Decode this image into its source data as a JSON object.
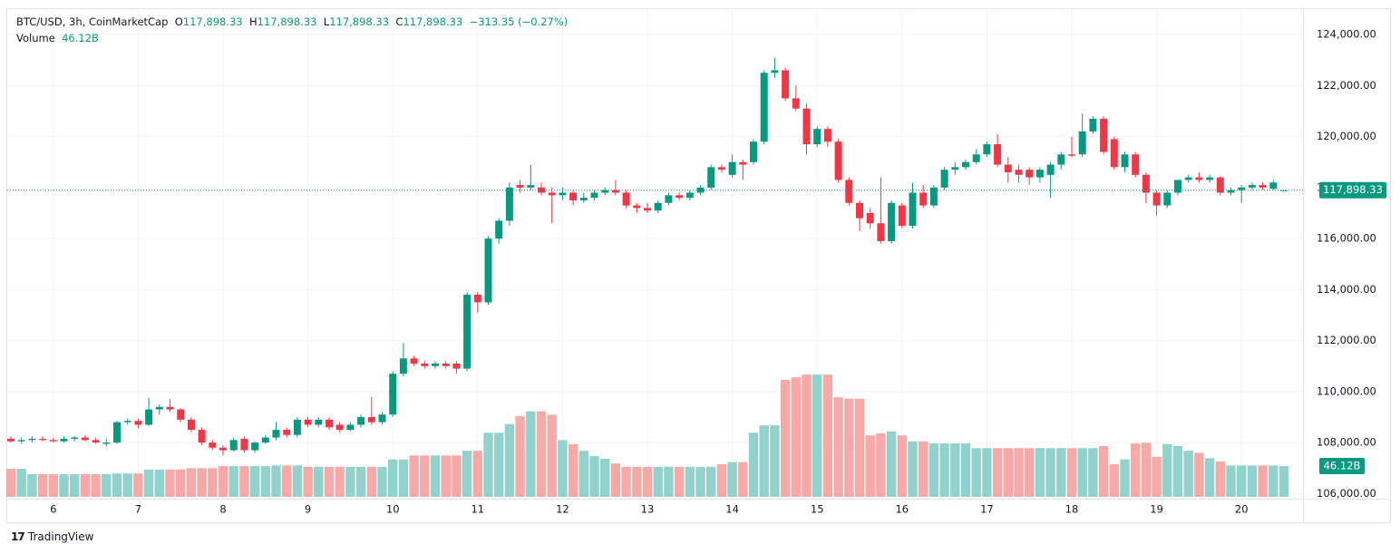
{
  "header": {
    "symbol": "BTC/USD, 3h, CoinMarketCap",
    "o_label": "O",
    "o": "117,898.33",
    "h_label": "H",
    "h": "117,898.33",
    "l_label": "L",
    "l": "117,898.33",
    "c_label": "C",
    "c": "117,898.33",
    "change": "−313.35 (−0.27%)",
    "volume_label": "Volume",
    "volume_value": "46.12B"
  },
  "footer": {
    "brand": "TradingView"
  },
  "chart_data": {
    "type": "candlestick",
    "up_color": "#089981",
    "down_color": "#f23645",
    "volume_up_color": "#92d2cc",
    "volume_down_color": "#f7a9a7",
    "ylim": [
      105800,
      125000
    ],
    "yticks": [
      {
        "value": 106000,
        "label": "106,000.00"
      },
      {
        "value": 108000,
        "label": "108,000.00"
      },
      {
        "value": 110000,
        "label": "110,000.00"
      },
      {
        "value": 112000,
        "label": "112,000.00"
      },
      {
        "value": 114000,
        "label": "114,000.00"
      },
      {
        "value": 116000,
        "label": "116,000.00"
      },
      {
        "value": 118000,
        "label": "118,000.00"
      },
      {
        "value": 120000,
        "label": "120,000.00"
      },
      {
        "value": 122000,
        "label": "122,000.00"
      },
      {
        "value": 124000,
        "label": "124,000.00"
      }
    ],
    "grid": true,
    "last_price": {
      "value": 117898.33,
      "label": "117,898.33"
    },
    "categories": [
      null,
      null,
      null,
      null,
      "6",
      null,
      null,
      null,
      null,
      null,
      null,
      null,
      "7",
      null,
      null,
      null,
      null,
      null,
      null,
      null,
      "8",
      null,
      null,
      null,
      null,
      null,
      null,
      null,
      "9",
      null,
      null,
      null,
      null,
      null,
      null,
      null,
      "10",
      null,
      null,
      null,
      null,
      null,
      null,
      null,
      "11",
      null,
      null,
      null,
      null,
      null,
      null,
      null,
      "12",
      null,
      null,
      null,
      null,
      null,
      null,
      null,
      "13",
      null,
      null,
      null,
      null,
      null,
      null,
      null,
      "14",
      null,
      null,
      null,
      null,
      null,
      null,
      null,
      "15",
      null,
      null,
      null,
      null,
      null,
      null,
      null,
      "16",
      null,
      null,
      null,
      null,
      null,
      null,
      null,
      "17",
      null,
      null,
      null,
      null,
      null,
      null,
      null,
      "18",
      null,
      null,
      null,
      null,
      null,
      null,
      null,
      "19",
      null,
      null,
      null,
      null,
      null,
      null,
      null,
      "20",
      null,
      null,
      null,
      null
    ],
    "ohlc": [
      [
        108150,
        108250,
        108000,
        108050
      ],
      [
        108050,
        108200,
        107950,
        108100
      ],
      [
        108100,
        108250,
        108000,
        108150
      ],
      [
        108150,
        108250,
        108050,
        108100
      ],
      [
        108100,
        108200,
        108000,
        108050
      ],
      [
        108050,
        108250,
        108000,
        108150
      ],
      [
        108150,
        108250,
        108050,
        108200
      ],
      [
        108200,
        108300,
        108050,
        108100
      ],
      [
        108100,
        108200,
        107950,
        108000
      ],
      [
        107950,
        108150,
        107850,
        108000
      ],
      [
        108000,
        108850,
        107950,
        108800
      ],
      [
        108800,
        108950,
        108700,
        108850
      ],
      [
        108850,
        108950,
        108550,
        108700
      ],
      [
        108700,
        109750,
        108650,
        109300
      ],
      [
        109300,
        109500,
        109100,
        109400
      ],
      [
        109400,
        109700,
        109200,
        109300
      ],
      [
        109300,
        109350,
        108800,
        108900
      ],
      [
        108900,
        109000,
        108400,
        108500
      ],
      [
        108500,
        108600,
        107900,
        108000
      ],
      [
        108000,
        108100,
        107700,
        107800
      ],
      [
        107800,
        107900,
        107500,
        107700
      ],
      [
        107700,
        108200,
        107650,
        108100
      ],
      [
        108150,
        108250,
        107600,
        107700
      ],
      [
        107700,
        108050,
        107600,
        108000
      ],
      [
        108000,
        108300,
        107950,
        108200
      ],
      [
        108200,
        108800,
        108100,
        108500
      ],
      [
        108500,
        108600,
        108200,
        108300
      ],
      [
        108300,
        109000,
        108200,
        108900
      ],
      [
        108900,
        109000,
        108600,
        108700
      ],
      [
        108700,
        109000,
        108600,
        108900
      ],
      [
        108900,
        109000,
        108500,
        108600
      ],
      [
        108700,
        108800,
        108400,
        108500
      ],
      [
        108500,
        108800,
        108450,
        108700
      ],
      [
        108700,
        109100,
        108600,
        109000
      ],
      [
        109000,
        109800,
        108700,
        108800
      ],
      [
        108800,
        109200,
        108700,
        109100
      ],
      [
        109100,
        110800,
        109000,
        110700
      ],
      [
        110700,
        111900,
        110600,
        111300
      ],
      [
        111300,
        111400,
        111000,
        111100
      ],
      [
        111100,
        111200,
        110900,
        111000
      ],
      [
        111000,
        111200,
        110900,
        111100
      ],
      [
        111100,
        111200,
        110900,
        111000
      ],
      [
        111100,
        111200,
        110700,
        110900
      ],
      [
        110900,
        113900,
        110800,
        113800
      ],
      [
        113800,
        113900,
        113100,
        113500
      ],
      [
        113500,
        116100,
        113400,
        116000
      ],
      [
        116000,
        116800,
        115800,
        116700
      ],
      [
        116700,
        118200,
        116500,
        118000
      ],
      [
        118100,
        118300,
        117800,
        118000
      ],
      [
        118000,
        118900,
        117900,
        118100
      ],
      [
        118000,
        118200,
        117700,
        117800
      ],
      [
        117800,
        118000,
        116600,
        117700
      ],
      [
        117700,
        118000,
        117500,
        117800
      ],
      [
        117800,
        117900,
        117300,
        117500
      ],
      [
        117500,
        117800,
        117400,
        117600
      ],
      [
        117600,
        117900,
        117500,
        117800
      ],
      [
        117800,
        118000,
        117700,
        117900
      ],
      [
        117900,
        118300,
        117700,
        117800
      ],
      [
        117800,
        117900,
        117200,
        117300
      ],
      [
        117300,
        117400,
        117000,
        117200
      ],
      [
        117200,
        117400,
        117000,
        117100
      ],
      [
        117100,
        117500,
        117000,
        117400
      ],
      [
        117400,
        117800,
        117300,
        117700
      ],
      [
        117700,
        117800,
        117500,
        117600
      ],
      [
        117600,
        117900,
        117500,
        117800
      ],
      [
        117800,
        118100,
        117700,
        118000
      ],
      [
        118000,
        118900,
        117900,
        118800
      ],
      [
        118800,
        118900,
        118600,
        118700
      ],
      [
        118500,
        119300,
        118400,
        119000
      ],
      [
        119000,
        119100,
        118300,
        118900
      ],
      [
        119000,
        119900,
        118900,
        119800
      ],
      [
        119800,
        122600,
        119700,
        122500
      ],
      [
        122500,
        123100,
        122300,
        122600
      ],
      [
        122600,
        122700,
        121400,
        121500
      ],
      [
        121500,
        122000,
        121000,
        121100
      ],
      [
        121100,
        121300,
        119300,
        119700
      ],
      [
        119700,
        120400,
        119600,
        120300
      ],
      [
        120300,
        120400,
        119600,
        119800
      ],
      [
        119800,
        119900,
        118200,
        118300
      ],
      [
        118300,
        118400,
        117300,
        117400
      ],
      [
        117400,
        117500,
        116300,
        116800
      ],
      [
        117000,
        117200,
        116400,
        116600
      ],
      [
        116600,
        118400,
        115800,
        115900
      ],
      [
        115900,
        117500,
        115800,
        117400
      ],
      [
        117300,
        117400,
        116400,
        116500
      ],
      [
        116500,
        118200,
        116400,
        117800
      ],
      [
        117800,
        118100,
        117200,
        117300
      ],
      [
        117300,
        118100,
        117200,
        118000
      ],
      [
        118000,
        118800,
        117900,
        118700
      ],
      [
        118700,
        119000,
        118500,
        118800
      ],
      [
        118800,
        119100,
        118700,
        119000
      ],
      [
        119000,
        119500,
        118900,
        119300
      ],
      [
        119300,
        119800,
        119200,
        119700
      ],
      [
        119700,
        120100,
        118800,
        118900
      ],
      [
        118900,
        119200,
        118200,
        118600
      ],
      [
        118700,
        118900,
        118200,
        118500
      ],
      [
        118700,
        118800,
        118100,
        118400
      ],
      [
        118400,
        118800,
        118200,
        118700
      ],
      [
        118500,
        119000,
        117600,
        118900
      ],
      [
        118900,
        119400,
        118700,
        119300
      ],
      [
        119300,
        120000,
        119200,
        119250
      ],
      [
        119300,
        120900,
        119200,
        120200
      ],
      [
        120200,
        120800,
        120100,
        120700
      ],
      [
        120700,
        120800,
        119300,
        119400
      ],
      [
        119900,
        120000,
        118700,
        118800
      ],
      [
        118800,
        119400,
        118600,
        119300
      ],
      [
        119300,
        119400,
        118400,
        118500
      ],
      [
        118500,
        118600,
        117400,
        117800
      ],
      [
        117800,
        117900,
        116900,
        117300
      ],
      [
        117300,
        117900,
        117200,
        117800
      ],
      [
        117800,
        118300,
        117700,
        118300
      ],
      [
        118300,
        118500,
        118200,
        118400
      ],
      [
        118400,
        118600,
        118200,
        118300
      ],
      [
        118300,
        118500,
        118200,
        118400
      ],
      [
        118400,
        118450,
        117700,
        117800
      ],
      [
        117800,
        118000,
        117700,
        117900
      ],
      [
        117900,
        118100,
        117400,
        118000
      ],
      [
        118000,
        118200,
        117900,
        118100
      ],
      [
        118100,
        118200,
        117900,
        118000
      ],
      [
        117950,
        118300,
        117900,
        118200
      ],
      [
        117898.33,
        117898.33,
        117898.33,
        117898.33
      ]
    ],
    "volume": [
      42,
      42,
      34,
      34,
      34,
      34,
      34,
      34,
      34,
      34,
      35,
      35,
      35,
      41,
      41,
      41,
      41,
      43,
      43,
      43,
      46,
      46,
      46,
      46,
      46,
      47,
      47,
      47,
      45,
      45,
      45,
      45,
      45,
      45,
      45,
      45,
      56,
      56,
      62,
      62,
      62,
      62,
      62,
      69,
      69,
      96,
      96,
      109,
      121,
      128,
      128,
      123,
      85,
      79,
      69,
      61,
      57,
      50,
      45,
      45,
      45,
      45,
      45,
      45,
      45,
      45,
      45,
      49,
      52,
      52,
      96,
      107,
      107,
      175,
      179,
      183,
      183,
      183,
      149,
      147,
      147,
      92,
      95,
      98,
      92,
      83,
      83,
      80,
      80,
      80,
      80,
      73,
      73,
      73,
      73,
      73,
      73,
      73,
      73,
      73,
      73,
      73,
      73,
      76,
      49,
      56,
      80,
      81,
      60,
      79,
      76,
      69,
      66,
      58,
      53,
      47,
      47,
      47,
      47,
      47,
      46.12
    ]
  }
}
